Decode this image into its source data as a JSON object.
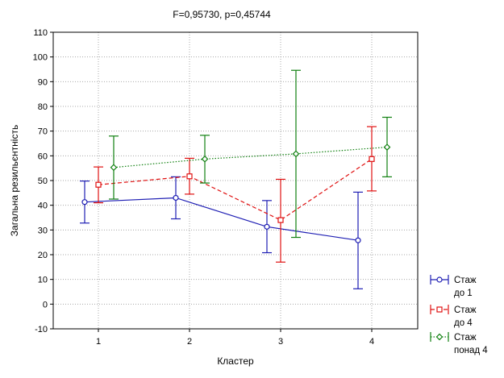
{
  "chart_data": {
    "type": "line",
    "title": "F=0,95730, p=0,45744",
    "xlabel": "Кластер",
    "ylabel": "Загальна резильєнтність",
    "categories": [
      "1",
      "2",
      "3",
      "4"
    ],
    "ylim": [
      -10,
      110
    ],
    "yticks": [
      -10,
      0,
      10,
      20,
      30,
      40,
      50,
      60,
      70,
      80,
      90,
      100,
      110
    ],
    "grid": true,
    "legend_position": "bottom-right",
    "error_bars": true,
    "series": [
      {
        "name": "Стаж до 1",
        "legend_lines": [
          "Стаж",
          "до 1"
        ],
        "color": "#1f1fb4",
        "line_style": "solid",
        "marker": "circle",
        "values": [
          41.3,
          43.0,
          31.3,
          25.8
        ],
        "lower": [
          32.8,
          34.5,
          20.8,
          6.2
        ],
        "upper": [
          49.8,
          51.5,
          41.9,
          45.3
        ]
      },
      {
        "name": "Стаж до 4",
        "legend_lines": [
          "Стаж",
          "до 4"
        ],
        "color": "#e01010",
        "line_style": "dashed",
        "marker": "square",
        "values": [
          48.3,
          51.7,
          34.0,
          58.7
        ],
        "lower": [
          41.0,
          44.5,
          17.0,
          45.8
        ],
        "upper": [
          55.5,
          59.0,
          50.5,
          71.8
        ]
      },
      {
        "name": "Стаж понад 4",
        "legend_lines": [
          "Стаж",
          "понад 4"
        ],
        "color": "#108010",
        "line_style": "dotted",
        "marker": "diamond",
        "values": [
          55.3,
          58.7,
          60.8,
          63.5
        ],
        "lower": [
          42.5,
          49.0,
          27.0,
          51.5
        ],
        "upper": [
          68.0,
          68.3,
          94.6,
          75.6
        ]
      }
    ]
  }
}
